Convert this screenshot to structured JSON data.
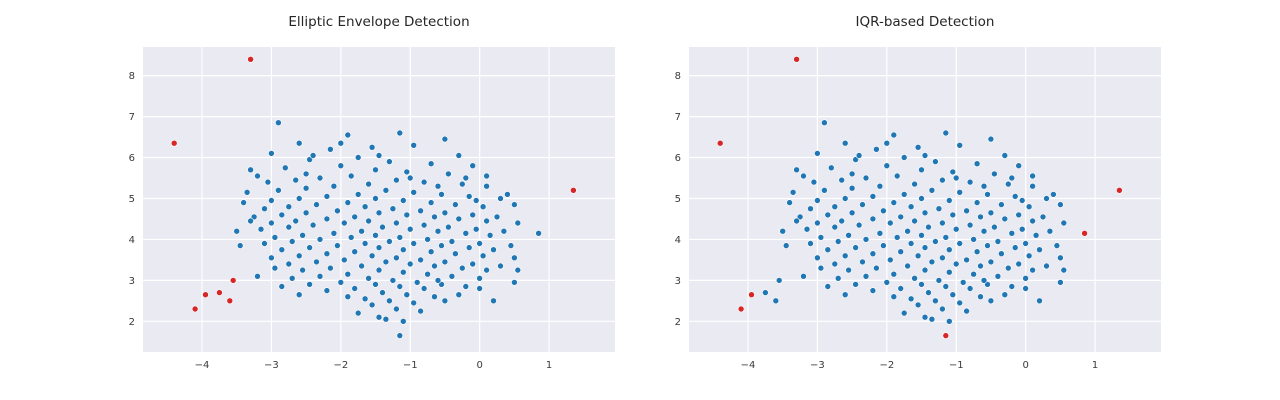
{
  "figure": {
    "background": "#ffffff"
  },
  "chart_data": {
    "type": "scatter",
    "grid": true,
    "legend": "none",
    "xlim": [
      -4.85,
      1.95
    ],
    "ylim": [
      1.25,
      8.7
    ],
    "xticks": [
      -4,
      -3,
      -2,
      -1,
      0,
      1
    ],
    "yticks": [
      2,
      3,
      4,
      5,
      6,
      7,
      8
    ],
    "colors": {
      "inlier": "#2077b4",
      "outlier": "#d62728",
      "axes_bg": "#eaeaf2",
      "grid": "#ffffff",
      "tick_label": "#3a3a3a",
      "point_edge": "#ffffff"
    },
    "charts": [
      {
        "title": "Elliptic Envelope Detection",
        "outlier_indices": [
          0,
          1,
          2,
          3,
          4,
          5,
          6,
          7
        ]
      },
      {
        "title": "IQR-based Detection",
        "outlier_indices": [
          0,
          1,
          2,
          3,
          4,
          8,
          9
        ]
      }
    ],
    "points": [
      [
        -4.4,
        6.35
      ],
      [
        -3.3,
        8.4
      ],
      [
        1.35,
        5.2
      ],
      [
        -4.1,
        2.3
      ],
      [
        -3.95,
        2.65
      ],
      [
        -3.75,
        2.7
      ],
      [
        -3.6,
        2.5
      ],
      [
        -3.55,
        3.0
      ],
      [
        0.85,
        4.15
      ],
      [
        -1.15,
        1.65
      ],
      [
        -2.9,
        6.85
      ],
      [
        -2.6,
        6.35
      ],
      [
        -1.9,
        6.55
      ],
      [
        -1.15,
        6.6
      ],
      [
        -0.5,
        6.45
      ],
      [
        -0.95,
        6.3
      ],
      [
        -1.55,
        6.25
      ],
      [
        -2.15,
        6.2
      ],
      [
        -3.0,
        6.1
      ],
      [
        -0.3,
        6.05
      ],
      [
        -1.75,
        6.0
      ],
      [
        -2.45,
        5.95
      ],
      [
        -1.3,
        5.9
      ],
      [
        -0.7,
        5.85
      ],
      [
        -0.1,
        5.8
      ],
      [
        -2.0,
        5.8
      ],
      [
        -2.8,
        5.75
      ],
      [
        -3.3,
        5.7
      ],
      [
        -1.5,
        5.7
      ],
      [
        -1.05,
        5.65
      ],
      [
        -0.45,
        5.6
      ],
      [
        -1.85,
        5.55
      ],
      [
        -2.3,
        5.5
      ],
      [
        -2.65,
        5.45
      ],
      [
        -3.05,
        5.4
      ],
      [
        -1.2,
        5.45
      ],
      [
        -0.8,
        5.4
      ],
      [
        -0.25,
        5.35
      ],
      [
        0.1,
        5.3
      ],
      [
        -1.6,
        5.35
      ],
      [
        -2.1,
        5.3
      ],
      [
        -2.5,
        5.25
      ],
      [
        -2.9,
        5.2
      ],
      [
        -3.35,
        5.15
      ],
      [
        -1.35,
        5.2
      ],
      [
        -0.95,
        5.15
      ],
      [
        -0.55,
        5.1
      ],
      [
        -0.15,
        5.05
      ],
      [
        0.3,
        5.0
      ],
      [
        -1.75,
        5.1
      ],
      [
        -2.2,
        5.05
      ],
      [
        -2.6,
        5.0
      ],
      [
        -3.0,
        4.95
      ],
      [
        -3.4,
        4.9
      ],
      [
        -1.5,
        5.0
      ],
      [
        -1.1,
        4.95
      ],
      [
        -0.7,
        4.9
      ],
      [
        -0.35,
        4.85
      ],
      [
        0.05,
        4.8
      ],
      [
        0.5,
        4.85
      ],
      [
        -1.9,
        4.9
      ],
      [
        -2.35,
        4.85
      ],
      [
        -2.75,
        4.8
      ],
      [
        -3.1,
        4.75
      ],
      [
        -1.65,
        4.8
      ],
      [
        -1.25,
        4.75
      ],
      [
        -0.85,
        4.7
      ],
      [
        -0.5,
        4.65
      ],
      [
        -0.1,
        4.6
      ],
      [
        0.25,
        4.55
      ],
      [
        -2.05,
        4.7
      ],
      [
        -2.5,
        4.65
      ],
      [
        -2.85,
        4.6
      ],
      [
        -3.25,
        4.55
      ],
      [
        -1.45,
        4.65
      ],
      [
        -1.05,
        4.6
      ],
      [
        -0.65,
        4.55
      ],
      [
        -0.3,
        4.5
      ],
      [
        0.1,
        4.45
      ],
      [
        0.55,
        4.4
      ],
      [
        -1.8,
        4.55
      ],
      [
        -2.2,
        4.5
      ],
      [
        -2.65,
        4.45
      ],
      [
        -3.0,
        4.4
      ],
      [
        -1.6,
        4.45
      ],
      [
        -1.2,
        4.4
      ],
      [
        -0.8,
        4.35
      ],
      [
        -0.45,
        4.3
      ],
      [
        -0.05,
        4.25
      ],
      [
        0.35,
        4.2
      ],
      [
        -1.95,
        4.4
      ],
      [
        -2.4,
        4.35
      ],
      [
        -2.75,
        4.3
      ],
      [
        -3.15,
        4.25
      ],
      [
        -1.4,
        4.3
      ],
      [
        -1.0,
        4.25
      ],
      [
        -0.6,
        4.2
      ],
      [
        -0.2,
        4.15
      ],
      [
        0.15,
        4.1
      ],
      [
        -1.7,
        4.2
      ],
      [
        -2.1,
        4.15
      ],
      [
        -2.55,
        4.1
      ],
      [
        -2.95,
        4.05
      ],
      [
        -1.5,
        4.1
      ],
      [
        -1.15,
        4.05
      ],
      [
        -0.75,
        4.0
      ],
      [
        -0.4,
        3.95
      ],
      [
        0.0,
        3.9
      ],
      [
        0.45,
        3.85
      ],
      [
        -1.85,
        4.05
      ],
      [
        -2.3,
        4.0
      ],
      [
        -2.7,
        3.95
      ],
      [
        -3.1,
        3.9
      ],
      [
        -1.3,
        3.95
      ],
      [
        -0.95,
        3.9
      ],
      [
        -0.55,
        3.85
      ],
      [
        -0.15,
        3.8
      ],
      [
        0.2,
        3.75
      ],
      [
        -3.45,
        3.85
      ],
      [
        -1.65,
        3.9
      ],
      [
        -2.05,
        3.85
      ],
      [
        -2.45,
        3.8
      ],
      [
        -2.85,
        3.75
      ],
      [
        -1.45,
        3.8
      ],
      [
        -1.1,
        3.75
      ],
      [
        -0.7,
        3.7
      ],
      [
        -0.35,
        3.65
      ],
      [
        0.05,
        3.6
      ],
      [
        0.5,
        3.55
      ],
      [
        -1.8,
        3.7
      ],
      [
        -2.2,
        3.65
      ],
      [
        -2.6,
        3.6
      ],
      [
        -3.0,
        3.55
      ],
      [
        -1.55,
        3.6
      ],
      [
        -1.2,
        3.55
      ],
      [
        -0.85,
        3.5
      ],
      [
        -0.5,
        3.45
      ],
      [
        -0.1,
        3.4
      ],
      [
        0.3,
        3.35
      ],
      [
        -1.95,
        3.5
      ],
      [
        -2.35,
        3.45
      ],
      [
        -2.75,
        3.4
      ],
      [
        -1.35,
        3.45
      ],
      [
        -1.0,
        3.4
      ],
      [
        -0.65,
        3.35
      ],
      [
        -0.25,
        3.3
      ],
      [
        0.1,
        3.25
      ],
      [
        -2.15,
        3.3
      ],
      [
        -2.55,
        3.25
      ],
      [
        -1.7,
        3.35
      ],
      [
        -1.45,
        3.25
      ],
      [
        -1.1,
        3.2
      ],
      [
        -0.75,
        3.15
      ],
      [
        -0.4,
        3.1
      ],
      [
        0.0,
        3.05
      ],
      [
        -1.9,
        3.15
      ],
      [
        -2.3,
        3.1
      ],
      [
        -2.7,
        3.05
      ],
      [
        -1.6,
        3.05
      ],
      [
        -1.25,
        3.0
      ],
      [
        -0.9,
        2.95
      ],
      [
        -0.55,
        2.9
      ],
      [
        -0.2,
        2.85
      ],
      [
        -2.0,
        2.95
      ],
      [
        -2.45,
        2.9
      ],
      [
        -1.5,
        2.9
      ],
      [
        -1.15,
        2.85
      ],
      [
        -0.8,
        2.8
      ],
      [
        -1.8,
        2.8
      ],
      [
        -2.2,
        2.75
      ],
      [
        -1.4,
        2.7
      ],
      [
        -1.05,
        2.65
      ],
      [
        -0.65,
        2.6
      ],
      [
        -1.9,
        2.6
      ],
      [
        -1.65,
        2.55
      ],
      [
        -1.3,
        2.5
      ],
      [
        -0.95,
        2.45
      ],
      [
        -1.55,
        2.4
      ],
      [
        -1.2,
        2.3
      ],
      [
        -0.85,
        2.25
      ],
      [
        -1.75,
        2.2
      ],
      [
        -1.45,
        2.1
      ],
      [
        -1.1,
        2.0
      ],
      [
        -0.5,
        2.5
      ],
      [
        -0.3,
        2.65
      ],
      [
        0.2,
        2.5
      ],
      [
        0.5,
        2.95
      ],
      [
        0.55,
        3.25
      ],
      [
        -2.85,
        2.85
      ],
      [
        -3.2,
        3.1
      ],
      [
        -3.5,
        4.2
      ],
      [
        -3.3,
        4.45
      ],
      [
        -3.2,
        5.55
      ],
      [
        -2.4,
        6.05
      ],
      [
        -0.2,
        5.5
      ],
      [
        0.1,
        5.55
      ],
      [
        0.4,
        5.1
      ],
      [
        -0.05,
        4.95
      ],
      [
        -2.95,
        3.3
      ],
      [
        -1.35,
        2.05
      ],
      [
        -0.6,
        3.0
      ],
      [
        0.0,
        2.8
      ],
      [
        -2.6,
        2.65
      ],
      [
        -2.5,
        5.6
      ],
      [
        -1.0,
        5.5
      ],
      [
        -0.6,
        5.3
      ],
      [
        -2.0,
        6.35
      ],
      [
        -1.45,
        6.05
      ]
    ]
  }
}
